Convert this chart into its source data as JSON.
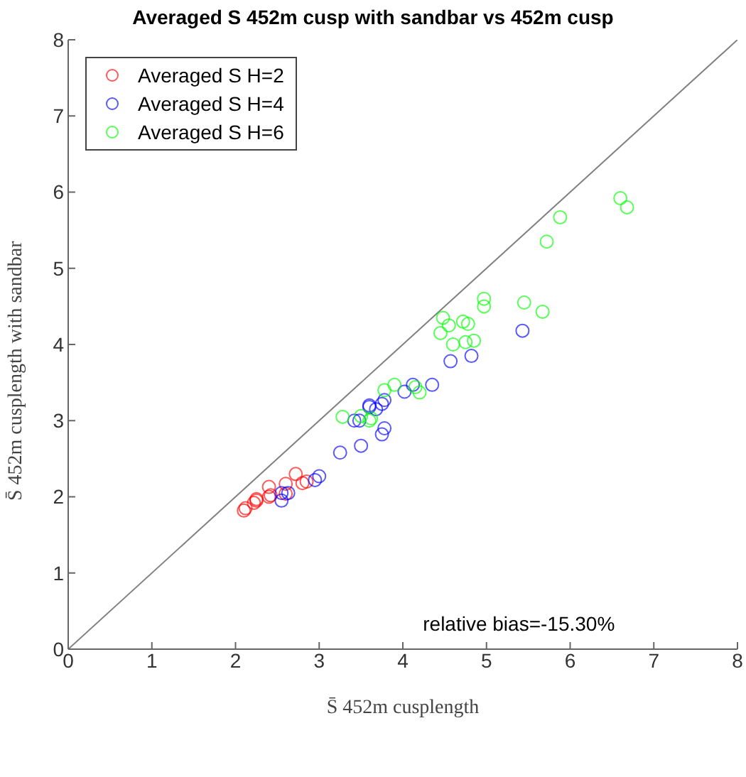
{
  "chart_data": {
    "type": "scatter",
    "title": "Averaged S 452m cusp with sandbar vs 452m cusp",
    "xlabel": "S̄ 452m cusplength",
    "ylabel": "S̄ 452m cusplength with sandbar",
    "xlim": [
      0,
      8
    ],
    "ylim": [
      0,
      8
    ],
    "xticks": [
      0,
      1,
      2,
      3,
      4,
      5,
      6,
      7,
      8
    ],
    "yticks": [
      0,
      1,
      2,
      3,
      4,
      5,
      6,
      7,
      8
    ],
    "grid": false,
    "legend": "top left",
    "marker": "circle",
    "annotations": [
      "relative bias=-15.30%"
    ],
    "series": [
      {
        "name": "Averaged S H=2",
        "color": "#ff0000",
        "x": [
          2.1,
          2.12,
          2.22,
          2.25,
          2.25,
          2.4,
          2.42,
          2.4,
          2.6,
          2.6,
          2.72,
          2.8,
          2.85
        ],
        "values": [
          1.82,
          1.85,
          1.92,
          1.97,
          1.95,
          2.0,
          2.02,
          2.13,
          2.04,
          2.17,
          2.3,
          2.18,
          2.2
        ]
      },
      {
        "name": "Averaged S H=4",
        "color": "#0000ff",
        "x": [
          2.55,
          2.55,
          2.63,
          2.95,
          3.0,
          3.25,
          3.5,
          3.75,
          3.78,
          3.42,
          3.48,
          3.6,
          3.6,
          3.68,
          3.75,
          3.78,
          4.02,
          4.12,
          4.35,
          4.57,
          4.82,
          5.43
        ],
        "values": [
          1.95,
          2.05,
          2.05,
          2.22,
          2.27,
          2.58,
          2.67,
          2.82,
          2.9,
          3.0,
          3.0,
          3.18,
          3.2,
          3.15,
          3.22,
          3.27,
          3.38,
          3.47,
          3.47,
          3.78,
          3.85,
          4.18
        ]
      },
      {
        "name": "Averaged S H=6",
        "color": "#00ff00",
        "x": [
          3.28,
          3.5,
          3.6,
          3.62,
          3.78,
          3.9,
          4.2,
          4.15,
          4.45,
          4.48,
          4.6,
          4.55,
          4.72,
          4.78,
          4.75,
          4.85,
          4.97,
          4.97,
          5.45,
          5.67,
          5.72,
          5.88,
          6.6,
          6.68
        ],
        "values": [
          3.05,
          3.06,
          3.0,
          3.03,
          3.4,
          3.47,
          3.37,
          3.44,
          4.15,
          4.35,
          4.0,
          4.25,
          4.3,
          4.27,
          4.03,
          4.05,
          4.5,
          4.6,
          4.55,
          4.43,
          5.35,
          5.67,
          5.92,
          5.8
        ]
      },
      {
        "type": "line",
        "color": "#808080",
        "x": [
          0,
          8
        ],
        "values": [
          0,
          8
        ],
        "marker": "none"
      }
    ]
  }
}
